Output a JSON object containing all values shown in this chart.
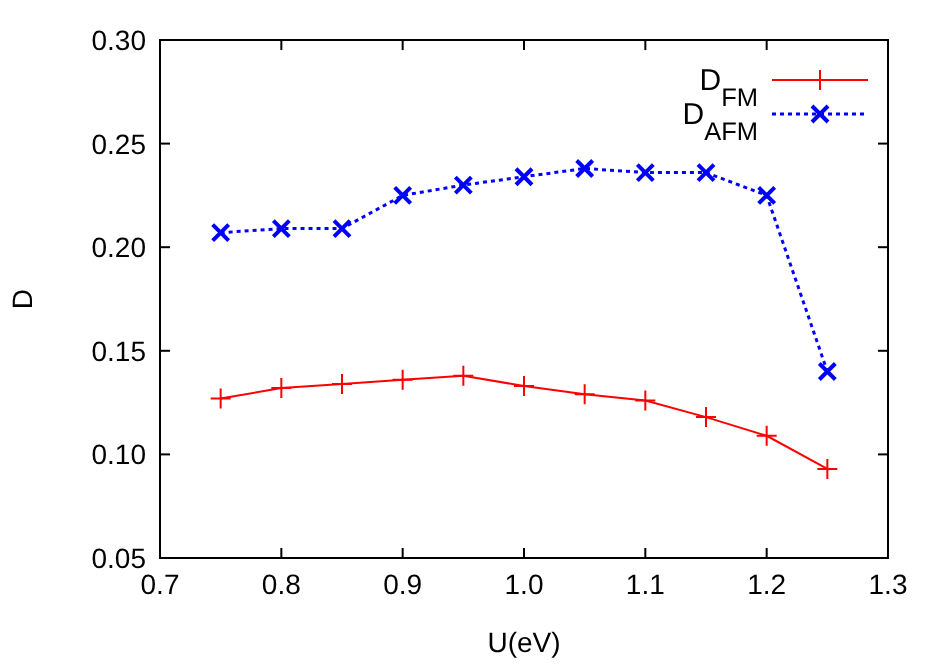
{
  "chart_data": {
    "type": "line",
    "xlabel": "U(eV)",
    "ylabel": "D",
    "x": [
      0.75,
      0.8,
      0.85,
      0.9,
      0.95,
      1.0,
      1.05,
      1.1,
      1.15,
      1.2,
      1.25
    ],
    "series": [
      {
        "name": "D$_{FM}$",
        "color": "#ff0000",
        "marker": "cross",
        "line_style": "solid",
        "values": [
          0.127,
          0.132,
          0.134,
          0.136,
          0.138,
          0.133,
          0.129,
          0.126,
          0.118,
          0.109,
          0.093
        ]
      },
      {
        "name": "D$_{AFM}$",
        "color": "#0000ff",
        "marker": "cross",
        "line_style": "dotted",
        "values": [
          0.207,
          0.209,
          0.209,
          0.225,
          0.23,
          0.234,
          0.238,
          0.236,
          0.236,
          0.225,
          0.14
        ]
      }
    ],
    "xlim": [
      0.7,
      1.3
    ],
    "xticks": [
      {
        "value": 0.7,
        "label": "0.7"
      },
      {
        "value": 0.8,
        "label": "0.8"
      },
      {
        "value": 0.9,
        "label": "0.9"
      },
      {
        "value": 1.0,
        "label": "1.0"
      },
      {
        "value": 1.1,
        "label": "1.1"
      },
      {
        "value": 1.2,
        "label": "1.2"
      },
      {
        "value": 1.3,
        "label": "1.3"
      }
    ],
    "ylim": [
      0.05,
      0.3
    ],
    "yticks": [
      {
        "value": 0.05,
        "label": "0.05"
      },
      {
        "value": 0.1,
        "label": "0.10"
      },
      {
        "value": 0.15,
        "label": "0.15"
      },
      {
        "value": 0.2,
        "label": "0.20"
      },
      {
        "value": 0.25,
        "label": "0.25"
      },
      {
        "value": 0.3,
        "label": "0.30"
      }
    ],
    "grid": false,
    "legend": "top right"
  }
}
